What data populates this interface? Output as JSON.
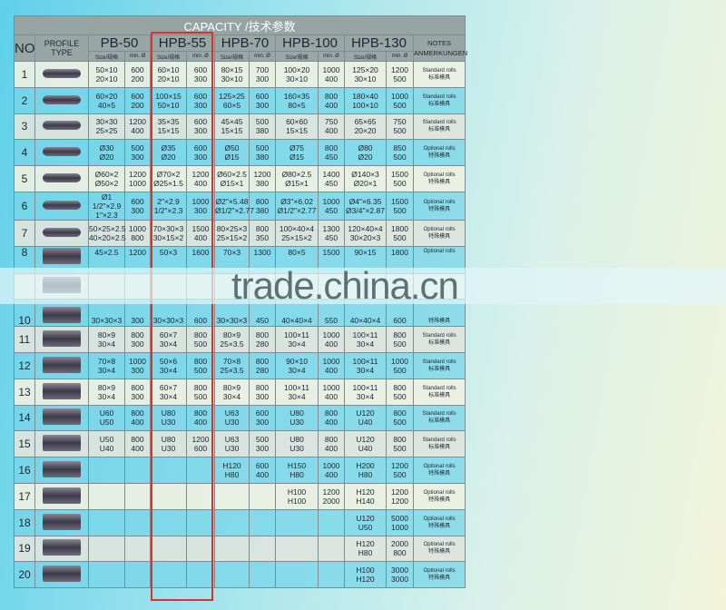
{
  "title": "CAPACITY /技术参数",
  "headers": {
    "no": "NO",
    "profile": "PROFILE TYPE",
    "models": [
      "PB-50",
      "HPB-55",
      "HPB-70",
      "HPB-100",
      "HPB-130"
    ],
    "size": "Size/规格",
    "min": "min. Ø",
    "notes": "NOTES\nANMERKUNGEN"
  },
  "highlighted_model": "HPB-55",
  "highlight_color": "#d8342c",
  "rows": [
    {
      "no": "1",
      "cells": [
        [
          "50×10\n20×10",
          "600\n200"
        ],
        [
          "60×10\n20×10",
          "600\n300"
        ],
        [
          "80×15\n30×10",
          "700\n300"
        ],
        [
          "100×20\n30×10",
          "1000\n400"
        ],
        [
          "125×20\n30×10",
          "1200\n500"
        ]
      ],
      "note": [
        "Standard rolls",
        "标准模具"
      ]
    },
    {
      "no": "2",
      "cells": [
        [
          "60×20\n40×5",
          "600\n200"
        ],
        [
          "100×15\n50×10",
          "600\n300"
        ],
        [
          "125×25\n60×5",
          "600\n300"
        ],
        [
          "160×35\n80×5",
          "800\n400"
        ],
        [
          "180×40\n100×10",
          "1000\n500"
        ]
      ],
      "note": [
        "Standard rolls",
        "标准模具"
      ]
    },
    {
      "no": "3",
      "cells": [
        [
          "30×30\n25×25",
          "1200\n400"
        ],
        [
          "35×35\n15×15",
          "600\n300"
        ],
        [
          "45×45\n15×15",
          "500\n380"
        ],
        [
          "60×60\n15×15",
          "750\n400"
        ],
        [
          "65×65\n20×20",
          "750\n500"
        ]
      ],
      "note": [
        "Standard rolls",
        "标准模具"
      ]
    },
    {
      "no": "4",
      "cells": [
        [
          "Ø30\nØ20",
          "500\n300"
        ],
        [
          "Ø35\nØ20",
          "600\n300"
        ],
        [
          "Ø50\nØ15",
          "500\n380"
        ],
        [
          "Ø75\nØ15",
          "800\n450"
        ],
        [
          "Ø80\nØ20",
          "850\n500"
        ]
      ],
      "note": [
        "Optional rolls",
        "特殊模具"
      ]
    },
    {
      "no": "5",
      "cells": [
        [
          "Ø60×2\nØ50×2",
          "1200\n1000"
        ],
        [
          "Ø70×2\nØ25×1.5",
          "1200\n400"
        ],
        [
          "Ø60×2.5\nØ15×1",
          "1200\n380"
        ],
        [
          "Ø80×2.5\nØ15×1",
          "1400\n450"
        ],
        [
          "Ø140×3\nØ20×1",
          "1500\n500"
        ]
      ],
      "note": [
        "Optional rolls",
        "特殊模具"
      ]
    },
    {
      "no": "6",
      "cells": [
        [
          "Ø1 1/2\"×2.9\n1\"×2.3",
          "600\n300"
        ],
        [
          "2\"×2.9\n1/2\"×2.3",
          "1000\n300"
        ],
        [
          "Ø2\"×5.48\nØ1/2\"×2.77",
          "800\n380"
        ],
        [
          "Ø3\"×6.02\nØ1/2\"×2.77",
          "1000\n450"
        ],
        [
          "Ø4\"×6.35\nØ3/4\"×2.87",
          "1500\n500"
        ]
      ],
      "note": [
        "Optional rolls",
        "特殊模具"
      ]
    },
    {
      "no": "7",
      "cells": [
        [
          "50×25×2.5\n40×20×2.5",
          "1000\n800"
        ],
        [
          "70×30×3\n30×15×2",
          "1500\n400"
        ],
        [
          "80×25×3\n25×15×2",
          "800\n350"
        ],
        [
          "100×40×4\n25×15×2",
          "1300\n450"
        ],
        [
          "120×40×4\n30×20×3",
          "1800\n500"
        ]
      ],
      "note": [
        "Optional rolls",
        "特殊模具"
      ]
    },
    {
      "no": "8",
      "cells": [
        [
          "45×2.5",
          "1200"
        ],
        [
          "50×3",
          "1600"
        ],
        [
          "70×3",
          "1300"
        ],
        [
          "80×5",
          "1500"
        ],
        [
          "90×15",
          "1800"
        ]
      ],
      "note": [
        "Optional rolls",
        ""
      ]
    },
    {
      "no": "",
      "cells": [
        [
          "",
          ""
        ],
        [
          "",
          ""
        ],
        [
          "",
          ""
        ],
        [
          "",
          ""
        ],
        [
          "",
          ""
        ]
      ],
      "note": [
        "",
        ""
      ]
    },
    {
      "no": "10",
      "cells": [
        [
          "30×30×3",
          "300"
        ],
        [
          "30×30×3",
          "600"
        ],
        [
          "30×30×3",
          "450"
        ],
        [
          "40×40×4",
          "550"
        ],
        [
          "40×40×4",
          "600"
        ]
      ],
      "note": [
        "",
        "特殊模具"
      ]
    },
    {
      "no": "11",
      "cells": [
        [
          "80×9\n30×4",
          "800\n300"
        ],
        [
          "60×7\n30×4",
          "800\n500"
        ],
        [
          "80×9\n25×3.5",
          "800\n280"
        ],
        [
          "100×11\n30×4",
          "1000\n400"
        ],
        [
          "100×11\n30×4",
          "800\n500"
        ]
      ],
      "note": [
        "Standard rolls",
        "标准模具"
      ]
    },
    {
      "no": "12",
      "cells": [
        [
          "70×8\n30×4",
          "1000\n300"
        ],
        [
          "50×6\n30×4",
          "800\n500"
        ],
        [
          "70×8\n25×3.5",
          "800\n280"
        ],
        [
          "90×10\n30×4",
          "1000\n400"
        ],
        [
          "100×11\n30×4",
          "1000\n500"
        ]
      ],
      "note": [
        "Standard rolls",
        "标准模具"
      ]
    },
    {
      "no": "13",
      "cells": [
        [
          "80×9\n30×4",
          "800\n300"
        ],
        [
          "60×7\n30×4",
          "800\n500"
        ],
        [
          "80×9\n30×4",
          "800\n300"
        ],
        [
          "100×11\n30×4",
          "1000\n400"
        ],
        [
          "100×11\n30×4",
          "800\n500"
        ]
      ],
      "note": [
        "Standard rolls",
        "标准模具"
      ]
    },
    {
      "no": "14",
      "cells": [
        [
          "U60\nU50",
          "800\n400"
        ],
        [
          "U80\nU30",
          "800\n400"
        ],
        [
          "U63\nU30",
          "600\n300"
        ],
        [
          "U80\nU30",
          "800\n400"
        ],
        [
          "U120\nU40",
          "800\n500"
        ]
      ],
      "note": [
        "Standard rolls",
        "标准模具"
      ]
    },
    {
      "no": "15",
      "cells": [
        [
          "U50\nU40",
          "800\n400"
        ],
        [
          "U80\nU30",
          "1200\n600"
        ],
        [
          "U63\nU30",
          "500\n300"
        ],
        [
          "U80\nU30",
          "800\n400"
        ],
        [
          "U120\nU40",
          "800\n500"
        ]
      ],
      "note": [
        "Standard rolls",
        "标准模具"
      ]
    },
    {
      "no": "16",
      "cells": [
        [
          "",
          ""
        ],
        [
          "",
          ""
        ],
        [
          "H120\nH80",
          "600\n400"
        ],
        [
          "H150\nH80",
          "1000\n400"
        ],
        [
          "H200\nH80",
          "1200\n500"
        ]
      ],
      "note": [
        "Optional rolls",
        "特殊模具"
      ]
    },
    {
      "no": "17",
      "cells": [
        [
          "",
          ""
        ],
        [
          "",
          ""
        ],
        [
          "",
          ""
        ],
        [
          "H100\nH100",
          "1200\n2000"
        ],
        [
          "H120\nH140",
          "1200\n1200"
        ]
      ],
      "note": [
        "Optional rolls",
        "特殊模具"
      ]
    },
    {
      "no": "18",
      "cells": [
        [
          "",
          ""
        ],
        [
          "",
          ""
        ],
        [
          "",
          ""
        ],
        [
          "",
          ""
        ],
        [
          "U120\nU50",
          "5000\n1000"
        ]
      ],
      "note": [
        "Optional rolls",
        "特殊模具"
      ]
    },
    {
      "no": "19",
      "cells": [
        [
          "",
          ""
        ],
        [
          "",
          ""
        ],
        [
          "",
          ""
        ],
        [
          "",
          ""
        ],
        [
          "H120\nH80",
          "2000\n800"
        ]
      ],
      "note": [
        "Optional rolls",
        "特殊模具"
      ]
    },
    {
      "no": "20",
      "cells": [
        [
          "",
          ""
        ],
        [
          "",
          ""
        ],
        [
          "",
          ""
        ],
        [
          "",
          ""
        ],
        [
          "H100\nH120",
          "3000\n3000"
        ]
      ],
      "note": [
        "Optional rolls",
        "特殊模具"
      ]
    }
  ],
  "watermark": "trade.china.cn"
}
